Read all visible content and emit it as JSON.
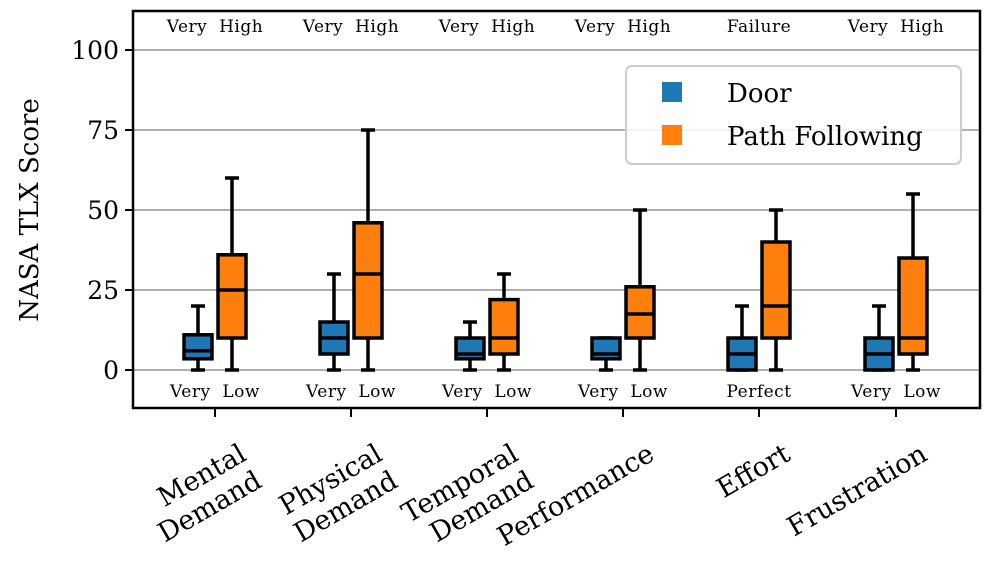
{
  "chart_data": {
    "type": "boxplot",
    "ylabel": "NASA TLX Score",
    "ylim": [
      -12,
      112
    ],
    "yticks": [
      0,
      25,
      50,
      75,
      100
    ],
    "grid": "horizontal",
    "legend_position": "top-right",
    "categories": [
      {
        "lines": [
          "Mental",
          "Demand"
        ]
      },
      {
        "lines": [
          "Physical",
          "Demand"
        ]
      },
      {
        "lines": [
          "Temporal",
          "Demand"
        ]
      },
      {
        "lines": [
          "Performance"
        ]
      },
      {
        "lines": [
          "Effort"
        ]
      },
      {
        "lines": [
          "Frustration"
        ]
      }
    ],
    "top_annotations": [
      "Very  High",
      "Very  High",
      "Very  High",
      "Very  High",
      "Failure",
      "Very  High"
    ],
    "bottom_annotations": [
      "Very  Low",
      "Very  Low",
      "Very  Low",
      "Very  Low",
      "Perfect",
      "Very  Low"
    ],
    "series": [
      {
        "name": "Door",
        "color": "#1f77b4",
        "boxes": [
          {
            "whislo": 0,
            "q1": 3.5,
            "med": 6,
            "q3": 11,
            "whishi": 20
          },
          {
            "whislo": 0,
            "q1": 5,
            "med": 10,
            "q3": 15,
            "whishi": 30
          },
          {
            "whislo": 0,
            "q1": 3.5,
            "med": 5,
            "q3": 10,
            "whishi": 15
          },
          {
            "whislo": 0,
            "q1": 3.5,
            "med": 5,
            "q3": 10,
            "whishi": 10
          },
          {
            "whislo": 0,
            "q1": 0,
            "med": 5,
            "q3": 10,
            "whishi": 20
          },
          {
            "whislo": 0,
            "q1": 0,
            "med": 5,
            "q3": 10,
            "whishi": 20
          }
        ]
      },
      {
        "name": "Path Following",
        "color": "#ff7f0e",
        "boxes": [
          {
            "whislo": 0,
            "q1": 10,
            "med": 25,
            "q3": 36,
            "whishi": 60
          },
          {
            "whislo": 0,
            "q1": 10,
            "med": 30,
            "q3": 46,
            "whishi": 75
          },
          {
            "whislo": 0,
            "q1": 5,
            "med": 10,
            "q3": 22,
            "whishi": 30
          },
          {
            "whislo": 0,
            "q1": 10,
            "med": 17.5,
            "q3": 26,
            "whishi": 50
          },
          {
            "whislo": 0,
            "q1": 10,
            "med": 20,
            "q3": 40,
            "whishi": 50
          },
          {
            "whislo": 0,
            "q1": 5,
            "med": 10,
            "q3": 35,
            "whishi": 55
          }
        ]
      }
    ]
  }
}
